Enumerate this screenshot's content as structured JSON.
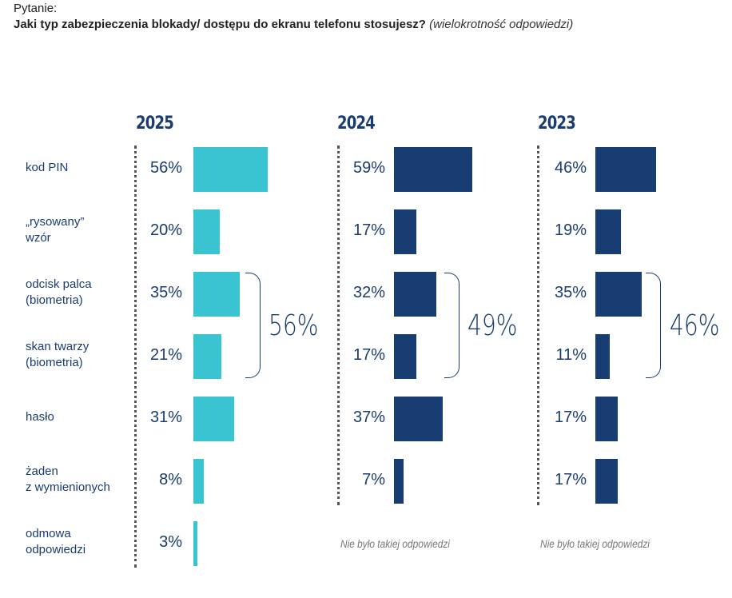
{
  "question": {
    "label": "Pytanie:",
    "text": "Jaki typ zabezpieczenia blokady/ dostępu do ekranu telefonu stosujesz?",
    "note": "(wielokrotność odpowiedzi)"
  },
  "colors": {
    "y2025": "#3ac4d2",
    "y2024": "#183d72",
    "y2023": "#183d72",
    "text": "#1a3c70"
  },
  "categories": [
    {
      "line1": "kod PIN",
      "line2": ""
    },
    {
      "line1": "„rysowany”",
      "line2": "wzór"
    },
    {
      "line1": "odcisk palca",
      "line2": "(biometria)"
    },
    {
      "line1": "skan twarzy",
      "line2": "(biometria)"
    },
    {
      "line1": "hasło",
      "line2": ""
    },
    {
      "line1": "żaden",
      "line2": "z wymienionych"
    },
    {
      "line1": "odmowa",
      "line2": "odpowiedzi"
    }
  ],
  "no_answer_text": "Nie było takiej odpowiedzi",
  "chart_data": {
    "type": "bar",
    "title": "Jaki typ zabezpieczenia blokady/ dostępu do ekranu telefonu stosujesz? (wielokrotność odpowiedzi)",
    "orientation": "horizontal",
    "categories": [
      "kod PIN",
      "„rysowany” wzór",
      "odcisk palca (biometria)",
      "skan twarzy (biometria)",
      "hasło",
      "żaden z wymienionych",
      "odmowa odpowiedzi"
    ],
    "series": [
      {
        "name": "2025",
        "values": [
          56,
          20,
          35,
          21,
          31,
          8,
          3
        ],
        "labels": [
          "56%",
          "20%",
          "35%",
          "21%",
          "31%",
          "8%",
          "3%"
        ],
        "biometrics_total": "56%"
      },
      {
        "name": "2024",
        "values": [
          59,
          17,
          32,
          17,
          37,
          7,
          null
        ],
        "labels": [
          "59%",
          "17%",
          "32%",
          "17%",
          "37%",
          "7%",
          null
        ],
        "biometrics_total": "49%"
      },
      {
        "name": "2023",
        "values": [
          46,
          19,
          35,
          11,
          17,
          17,
          null
        ],
        "labels": [
          "46%",
          "19%",
          "35%",
          "11%",
          "17%",
          "17%",
          null
        ],
        "biometrics_total": "46%"
      }
    ],
    "unit": "%",
    "xlabel": "",
    "ylabel": "",
    "grid": false
  }
}
